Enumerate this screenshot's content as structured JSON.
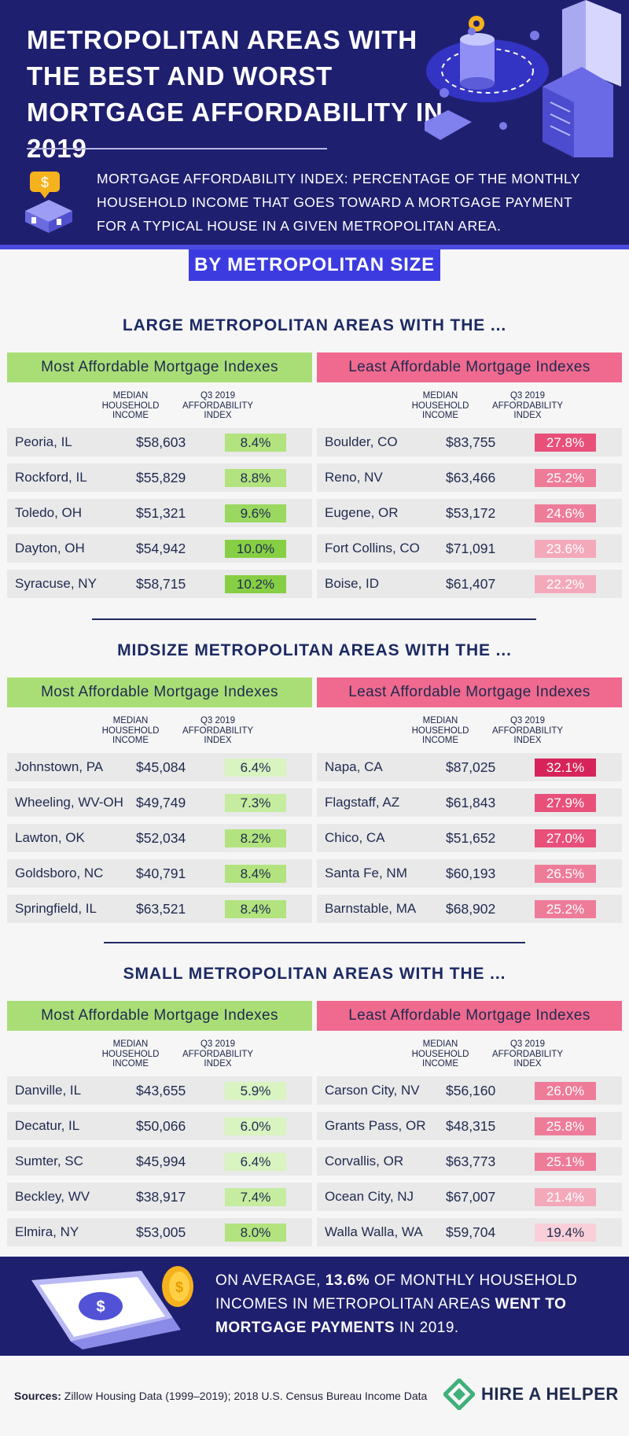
{
  "title": "METROPOLITAN AREAS WITH THE BEST AND WORST MORTGAGE AFFORDABILITY IN 2019",
  "definition": "MORTGAGE AFFORDABILITY INDEX: PERCENTAGE OF THE MONTHLY HOUSEHOLD INCOME THAT GOES TOWARD A MORTGAGE PAYMENT FOR A TYPICAL HOUSE IN A GIVEN METROPOLITAN AREA.",
  "size_badge": "BY METROPOLITAN SIZE",
  "colors": {
    "navy": "#1f1f70",
    "accent_blue": "#3b3be0",
    "green_header": "#a9de76",
    "pink_header": "#f0698f",
    "green_scale": [
      "#d9f3c1",
      "#c6ec9f",
      "#b2e37e",
      "#9ad860",
      "#86cf44"
    ],
    "pink_scale": [
      "#f9d0d9",
      "#f4a9bb",
      "#ee7c99",
      "#e85079",
      "#d6245a"
    ]
  },
  "chart_data": {
    "type": "table",
    "columns": [
      "MEDIAN HOUSEHOLD INCOME",
      "Q3 2019 AFFORDABILITY INDEX"
    ],
    "sections": [
      {
        "title": "LARGE METROPOLITAN AREAS WITH THE ...",
        "most": {
          "header": "Most Affordable Mortgage Indexes",
          "rows": [
            {
              "city": "Peoria, IL",
              "income": "$58,603",
              "index": "8.4%",
              "value": 8.4
            },
            {
              "city": "Rockford, IL",
              "income": "$55,829",
              "index": "8.8%",
              "value": 8.8
            },
            {
              "city": "Toledo, OH",
              "income": "$51,321",
              "index": "9.6%",
              "value": 9.6
            },
            {
              "city": "Dayton, OH",
              "income": "$54,942",
              "index": "10.0%",
              "value": 10.0
            },
            {
              "city": "Syracuse, NY",
              "income": "$58,715",
              "index": "10.2%",
              "value": 10.2
            }
          ]
        },
        "least": {
          "header": "Least Affordable Mortgage Indexes",
          "rows": [
            {
              "city": "Boulder, CO",
              "income": "$83,755",
              "index": "27.8%",
              "value": 27.8
            },
            {
              "city": "Reno, NV",
              "income": "$63,466",
              "index": "25.2%",
              "value": 25.2
            },
            {
              "city": "Eugene, OR",
              "income": "$53,172",
              "index": "24.6%",
              "value": 24.6
            },
            {
              "city": "Fort Collins, CO",
              "income": "$71,091",
              "index": "23.6%",
              "value": 23.6
            },
            {
              "city": "Boise, ID",
              "income": "$61,407",
              "index": "22.2%",
              "value": 22.2
            }
          ]
        }
      },
      {
        "title": "MIDSIZE METROPOLITAN AREAS WITH THE ...",
        "most": {
          "header": "Most Affordable Mortgage Indexes",
          "rows": [
            {
              "city": "Johnstown, PA",
              "income": "$45,084",
              "index": "6.4%",
              "value": 6.4
            },
            {
              "city": "Wheeling, WV-OH",
              "income": "$49,749",
              "index": "7.3%",
              "value": 7.3
            },
            {
              "city": "Lawton, OK",
              "income": "$52,034",
              "index": "8.2%",
              "value": 8.2
            },
            {
              "city": "Goldsboro, NC",
              "income": "$40,791",
              "index": "8.4%",
              "value": 8.4
            },
            {
              "city": "Springfield, IL",
              "income": "$63,521",
              "index": "8.4%",
              "value": 8.4
            }
          ]
        },
        "least": {
          "header": "Least Affordable Mortgage Indexes",
          "rows": [
            {
              "city": "Napa, CA",
              "income": "$87,025",
              "index": "32.1%",
              "value": 32.1
            },
            {
              "city": "Flagstaff, AZ",
              "income": "$61,843",
              "index": "27.9%",
              "value": 27.9
            },
            {
              "city": "Chico, CA",
              "income": "$51,652",
              "index": "27.0%",
              "value": 27.0
            },
            {
              "city": "Santa Fe, NM",
              "income": "$60,193",
              "index": "26.5%",
              "value": 26.5
            },
            {
              "city": "Barnstable, MA",
              "income": "$68,902",
              "index": "25.2%",
              "value": 25.2
            }
          ]
        }
      },
      {
        "title": "SMALL METROPOLITAN AREAS WITH THE ...",
        "most": {
          "header": "Most Affordable Mortgage Indexes",
          "rows": [
            {
              "city": "Danville, IL",
              "income": "$43,655",
              "index": "5.9%",
              "value": 5.9
            },
            {
              "city": "Decatur, IL",
              "income": "$50,066",
              "index": "6.0%",
              "value": 6.0
            },
            {
              "city": "Sumter, SC",
              "income": "$45,994",
              "index": "6.4%",
              "value": 6.4
            },
            {
              "city": "Beckley, WV",
              "income": "$38,917",
              "index": "7.4%",
              "value": 7.4
            },
            {
              "city": "Elmira, NY",
              "income": "$53,005",
              "index": "8.0%",
              "value": 8.0
            }
          ]
        },
        "least": {
          "header": "Least Affordable Mortgage Indexes",
          "rows": [
            {
              "city": "Carson City, NV",
              "income": "$56,160",
              "index": "26.0%",
              "value": 26.0
            },
            {
              "city": "Grants Pass, OR",
              "income": "$48,315",
              "index": "25.8%",
              "value": 25.8
            },
            {
              "city": "Corvallis, OR",
              "income": "$63,773",
              "index": "25.1%",
              "value": 25.1
            },
            {
              "city": "Ocean City, NJ",
              "income": "$67,007",
              "index": "21.4%",
              "value": 21.4
            },
            {
              "city": "Walla Walla, WA",
              "income": "$59,704",
              "index": "19.4%",
              "value": 19.4
            }
          ]
        }
      }
    ]
  },
  "average": {
    "pre": "ON AVERAGE, ",
    "value": "13.6%",
    "mid": " OF MONTHLY HOUSEHOLD INCOMES IN METROPOLITAN AREAS ",
    "emph": "WENT TO MORTGAGE PAYMENTS",
    "post": " IN 2019."
  },
  "sources": {
    "label": "Sources:",
    "text": " Zillow Housing Data (1999–2019); 2018 U.S. Census Bureau Income Data"
  },
  "brand": "HIRE A HELPER"
}
